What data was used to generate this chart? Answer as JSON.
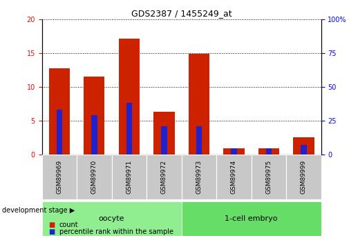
{
  "title": "GDS2387 / 1455249_at",
  "samples": [
    "GSM89969",
    "GSM89970",
    "GSM89971",
    "GSM89972",
    "GSM89973",
    "GSM89974",
    "GSM89975",
    "GSM89999"
  ],
  "count_values": [
    12.7,
    11.5,
    17.1,
    6.3,
    14.9,
    0.9,
    0.9,
    2.5
  ],
  "percentile_values": [
    33.0,
    29.0,
    38.0,
    21.0,
    21.0,
    4.25,
    4.25,
    7.0
  ],
  "left_ylim": [
    0,
    20
  ],
  "right_ylim": [
    0,
    100
  ],
  "left_yticks": [
    0,
    5,
    10,
    15,
    20
  ],
  "right_yticks": [
    0,
    25,
    50,
    75,
    100
  ],
  "right_yticklabels": [
    "0",
    "25",
    "50",
    "75",
    "100%"
  ],
  "oocyte_group": {
    "label": "oocyte",
    "indices": [
      0,
      1,
      2,
      3
    ],
    "color": "#90EE90"
  },
  "embryo_group": {
    "label": "1-cell embryo",
    "indices": [
      4,
      5,
      6,
      7
    ],
    "color": "#66DD66"
  },
  "group_stage_label": "development stage",
  "bar_color": "#CC2200",
  "percentile_color": "#2222CC",
  "bar_width": 0.6,
  "grid_color": "black",
  "background_color": "#ffffff",
  "xlabel_area_color": "#c8c8c8",
  "legend_items": [
    {
      "color": "#CC2200",
      "label": "count"
    },
    {
      "color": "#2222CC",
      "label": "percentile rank within the sample"
    }
  ]
}
